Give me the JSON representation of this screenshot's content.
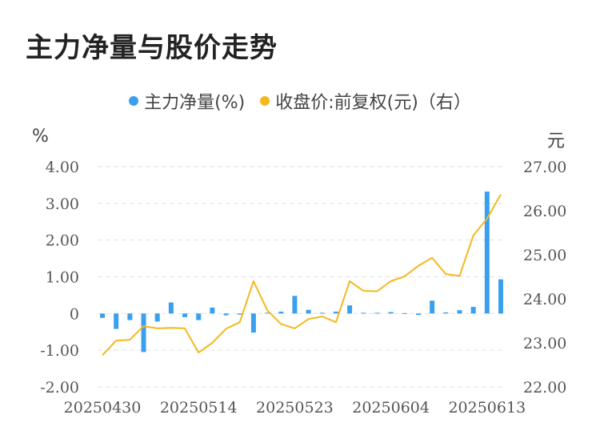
{
  "title": "主力净量与股价走势",
  "legend": {
    "series1": "主力净量(%)",
    "series2": "收盘价:前复权(元)（右）"
  },
  "units": {
    "left": "%",
    "right": "元"
  },
  "colors": {
    "bar": "#3aa0ee",
    "line": "#f5b81c",
    "grid": "#e3e3e3"
  },
  "chart_data": {
    "type": "bar+line",
    "x_tick_labels": [
      "20250430",
      "20250514",
      "20250523",
      "20250604",
      "20250613"
    ],
    "x_tick_indices": [
      0,
      7,
      14,
      21,
      28
    ],
    "left_axis": {
      "ylim": [
        -2.0,
        4.0
      ],
      "ticks": [
        "4.00",
        "3.00",
        "2.00",
        "1.00",
        "0",
        "-1.00",
        "-2.00"
      ]
    },
    "right_axis": {
      "ylim": [
        22.0,
        27.0
      ],
      "ticks": [
        "27.00",
        "26.00",
        "25.00",
        "24.00",
        "23.00",
        "22.00"
      ]
    },
    "series": [
      {
        "name": "主力净量(%)",
        "type": "bar",
        "axis": "left",
        "values": [
          -0.12,
          -0.42,
          -0.18,
          -1.05,
          -0.22,
          0.3,
          -0.1,
          -0.18,
          0.16,
          -0.05,
          -0.03,
          -0.52,
          0.02,
          0.05,
          0.48,
          0.1,
          0.02,
          0.05,
          0.22,
          0.02,
          0.02,
          0.04,
          0.01,
          -0.04,
          0.35,
          0.03,
          0.09,
          0.18,
          3.32,
          0.93
        ]
      },
      {
        "name": "收盘价:前复权(元)",
        "type": "line",
        "axis": "right",
        "values": [
          22.72,
          23.05,
          23.07,
          23.38,
          23.33,
          23.34,
          23.33,
          22.78,
          23.0,
          23.32,
          23.47,
          24.4,
          23.74,
          23.43,
          23.33,
          23.54,
          23.6,
          23.47,
          24.4,
          24.18,
          24.17,
          24.4,
          24.51,
          24.75,
          24.93,
          24.56,
          24.52,
          25.44,
          25.82,
          26.37
        ]
      }
    ]
  }
}
